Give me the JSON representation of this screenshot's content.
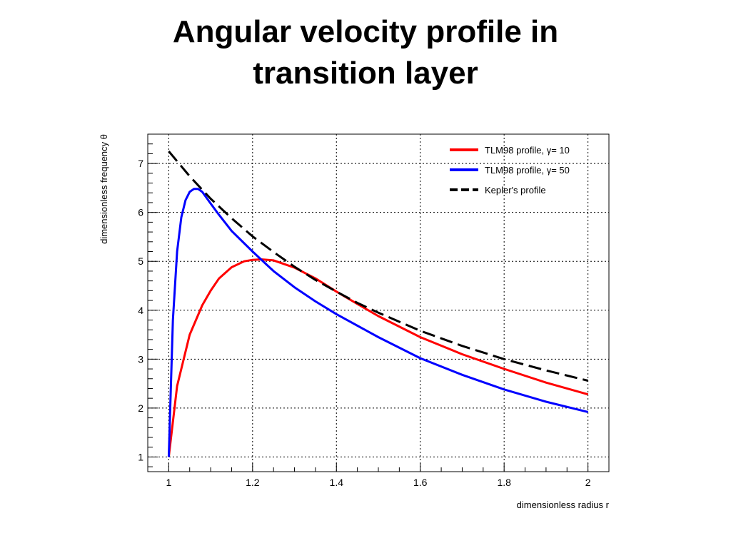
{
  "slide": {
    "title_line1": "Angular velocity profile in",
    "title_line2": "transition layer"
  },
  "chart_data": {
    "type": "line",
    "xlabel": "dimensionless radius r",
    "ylabel": "dimensionless frequency θ",
    "xlim": [
      0.95,
      2.05
    ],
    "ylim": [
      0.7,
      7.6
    ],
    "x_ticks": [
      1,
      1.2,
      1.4,
      1.6,
      1.8,
      2
    ],
    "x_tick_labels": [
      "1",
      "1.2",
      "1.4",
      "1.6",
      "1.8",
      "2"
    ],
    "y_ticks": [
      1,
      2,
      3,
      4,
      5,
      6,
      7
    ],
    "y_tick_labels": [
      "1",
      "2",
      "3",
      "4",
      "5",
      "6",
      "7"
    ],
    "grid": true,
    "legend_position": "top-right",
    "series": [
      {
        "name": "TLM98 profile, γ= 10",
        "color": "#ff0000",
        "dash": "solid",
        "x": [
          1.0,
          1.02,
          1.05,
          1.08,
          1.1,
          1.12,
          1.15,
          1.18,
          1.2,
          1.22,
          1.25,
          1.3,
          1.35,
          1.4,
          1.45,
          1.5,
          1.6,
          1.7,
          1.8,
          1.9,
          2.0
        ],
        "y": [
          1.0,
          2.45,
          3.5,
          4.1,
          4.4,
          4.65,
          4.88,
          5.0,
          5.03,
          5.04,
          5.02,
          4.87,
          4.65,
          4.38,
          4.13,
          3.88,
          3.45,
          3.1,
          2.8,
          2.52,
          2.28
        ]
      },
      {
        "name": "TLM98 profile, γ= 50",
        "color": "#0000ff",
        "dash": "solid",
        "x": [
          1.0,
          1.01,
          1.02,
          1.03,
          1.04,
          1.05,
          1.06,
          1.07,
          1.08,
          1.1,
          1.12,
          1.15,
          1.2,
          1.25,
          1.3,
          1.35,
          1.4,
          1.5,
          1.6,
          1.7,
          1.8,
          1.9,
          2.0
        ],
        "y": [
          1.0,
          3.8,
          5.2,
          5.9,
          6.25,
          6.42,
          6.48,
          6.48,
          6.42,
          6.18,
          5.95,
          5.62,
          5.2,
          4.8,
          4.47,
          4.18,
          3.92,
          3.45,
          3.02,
          2.68,
          2.38,
          2.13,
          1.92
        ]
      },
      {
        "name": "Kepler's profile",
        "color": "#000000",
        "dash": "dashed",
        "x": [
          1.0,
          1.05,
          1.1,
          1.15,
          1.2,
          1.25,
          1.3,
          1.35,
          1.4,
          1.45,
          1.5,
          1.6,
          1.7,
          1.8,
          1.9,
          2.0
        ],
        "y": [
          7.25,
          6.74,
          6.28,
          5.88,
          5.51,
          5.19,
          4.89,
          4.62,
          4.38,
          4.15,
          3.95,
          3.58,
          3.27,
          3.0,
          2.77,
          2.56
        ]
      }
    ]
  }
}
